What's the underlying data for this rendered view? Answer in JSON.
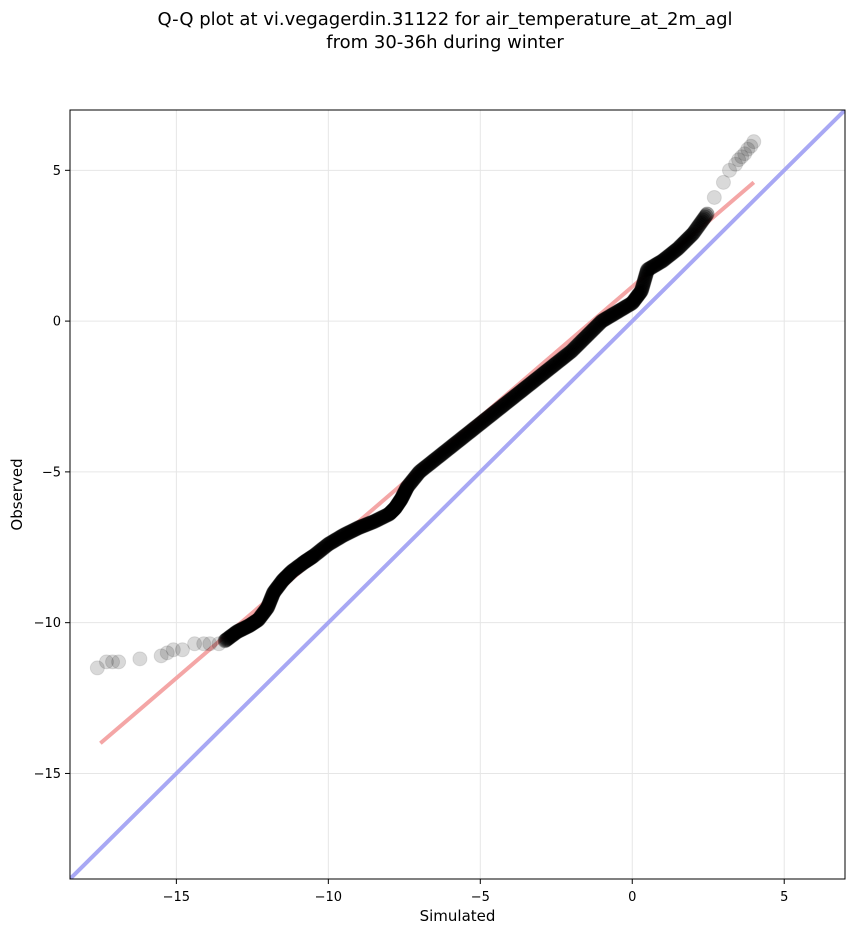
{
  "chart_data": {
    "type": "scatter",
    "title": "Q-Q plot at vi.vegagerdin.31122 for air_temperature_at_2m_agl",
    "subtitle": "from 30-36h during winter",
    "xlabel": "Simulated",
    "ylabel": "Observed",
    "xlim": [
      -18.5,
      7
    ],
    "ylim": [
      -18.5,
      7
    ],
    "xticks": [
      -15,
      -10,
      -5,
      0,
      5
    ],
    "yticks": [
      -15,
      -10,
      -5,
      0,
      5
    ],
    "xtick_labels": [
      "−15",
      "−10",
      "−5",
      "0",
      "5"
    ],
    "ytick_labels": [
      "−15",
      "−10",
      "−5",
      "0",
      "5"
    ],
    "grid": true,
    "colors": {
      "points": "#000000",
      "fit_line": "#f4a6a6",
      "identity_line": "#a8a8f4"
    },
    "fit_line": {
      "x": [
        -17.5,
        4.0
      ],
      "y": [
        -14.0,
        4.6
      ]
    },
    "identity_line": {
      "x": [
        -18.5,
        7.0
      ],
      "y": [
        -18.5,
        7.0
      ]
    },
    "quantile_curve": {
      "x": [
        -13.4,
        -13.0,
        -12.6,
        -12.3,
        -12.0,
        -11.8,
        -11.5,
        -11.2,
        -10.8,
        -10.5,
        -10.0,
        -9.5,
        -9.0,
        -8.5,
        -8.0,
        -7.8,
        -7.6,
        -7.4,
        -7.0,
        -6.5,
        -6.0,
        -5.5,
        -5.0,
        -4.5,
        -4.0,
        -3.5,
        -3.0,
        -2.5,
        -2.0,
        -1.5,
        -1.0,
        -0.5,
        0.0,
        0.3,
        0.5,
        1.0,
        1.5,
        2.0,
        2.5
      ],
      "y": [
        -10.6,
        -10.3,
        -10.1,
        -9.9,
        -9.5,
        -9.0,
        -8.6,
        -8.3,
        -8.0,
        -7.8,
        -7.4,
        -7.1,
        -6.85,
        -6.65,
        -6.4,
        -6.2,
        -5.9,
        -5.5,
        -5.0,
        -4.6,
        -4.2,
        -3.8,
        -3.4,
        -3.0,
        -2.6,
        -2.2,
        -1.8,
        -1.4,
        -1.0,
        -0.5,
        0.0,
        0.3,
        0.6,
        1.0,
        1.7,
        2.0,
        2.4,
        2.9,
        3.6
      ]
    },
    "sparse_points": {
      "x": [
        -17.6,
        -17.3,
        -17.1,
        -16.9,
        -16.2,
        -15.5,
        -15.3,
        -15.1,
        -14.8,
        -14.4,
        -14.1,
        -13.9,
        -13.6,
        2.7,
        3.0,
        3.2,
        3.4,
        3.5,
        3.6,
        3.7,
        3.8,
        3.9,
        4.0
      ],
      "y": [
        -11.5,
        -11.3,
        -11.3,
        -11.3,
        -11.2,
        -11.1,
        -11.0,
        -10.9,
        -10.9,
        -10.7,
        -10.7,
        -10.7,
        -10.7,
        4.1,
        4.6,
        5.0,
        5.2,
        5.35,
        5.45,
        5.55,
        5.7,
        5.8,
        5.95
      ]
    }
  }
}
